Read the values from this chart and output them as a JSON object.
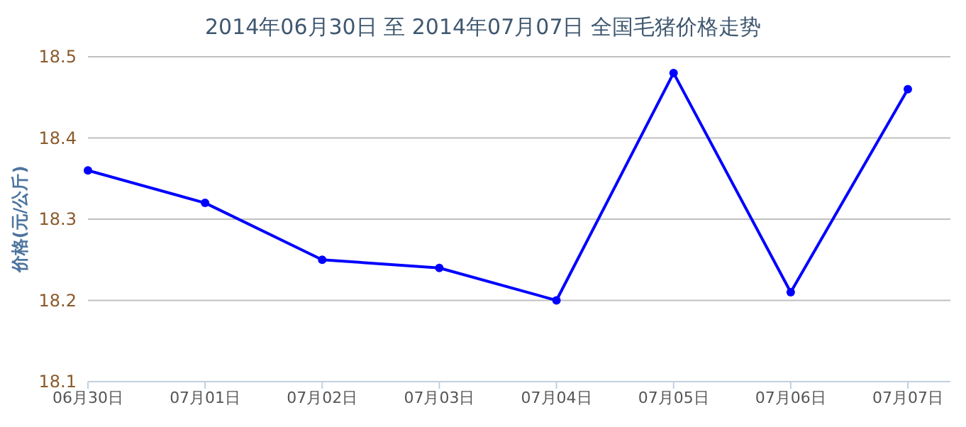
{
  "chart_data": {
    "type": "line",
    "title": "2014年06月30日 至 2014年07月07日 全国毛猪价格走势",
    "ylabel": "价格(元/公斤)",
    "categories": [
      "06月30日",
      "07月01日",
      "07月02日",
      "07月03日",
      "07月04日",
      "07月05日",
      "07月06日",
      "07月07日"
    ],
    "series": [
      {
        "color": "#0000ff",
        "values": [
          18.36,
          18.32,
          18.25,
          18.24,
          18.2,
          18.48,
          18.21,
          18.46
        ]
      }
    ],
    "ylim": [
      18.1,
      18.5
    ],
    "yticks": [
      18.1,
      18.2,
      18.3,
      18.4,
      18.5
    ],
    "grid": "y",
    "marker": "circle",
    "line_style": "solid"
  }
}
